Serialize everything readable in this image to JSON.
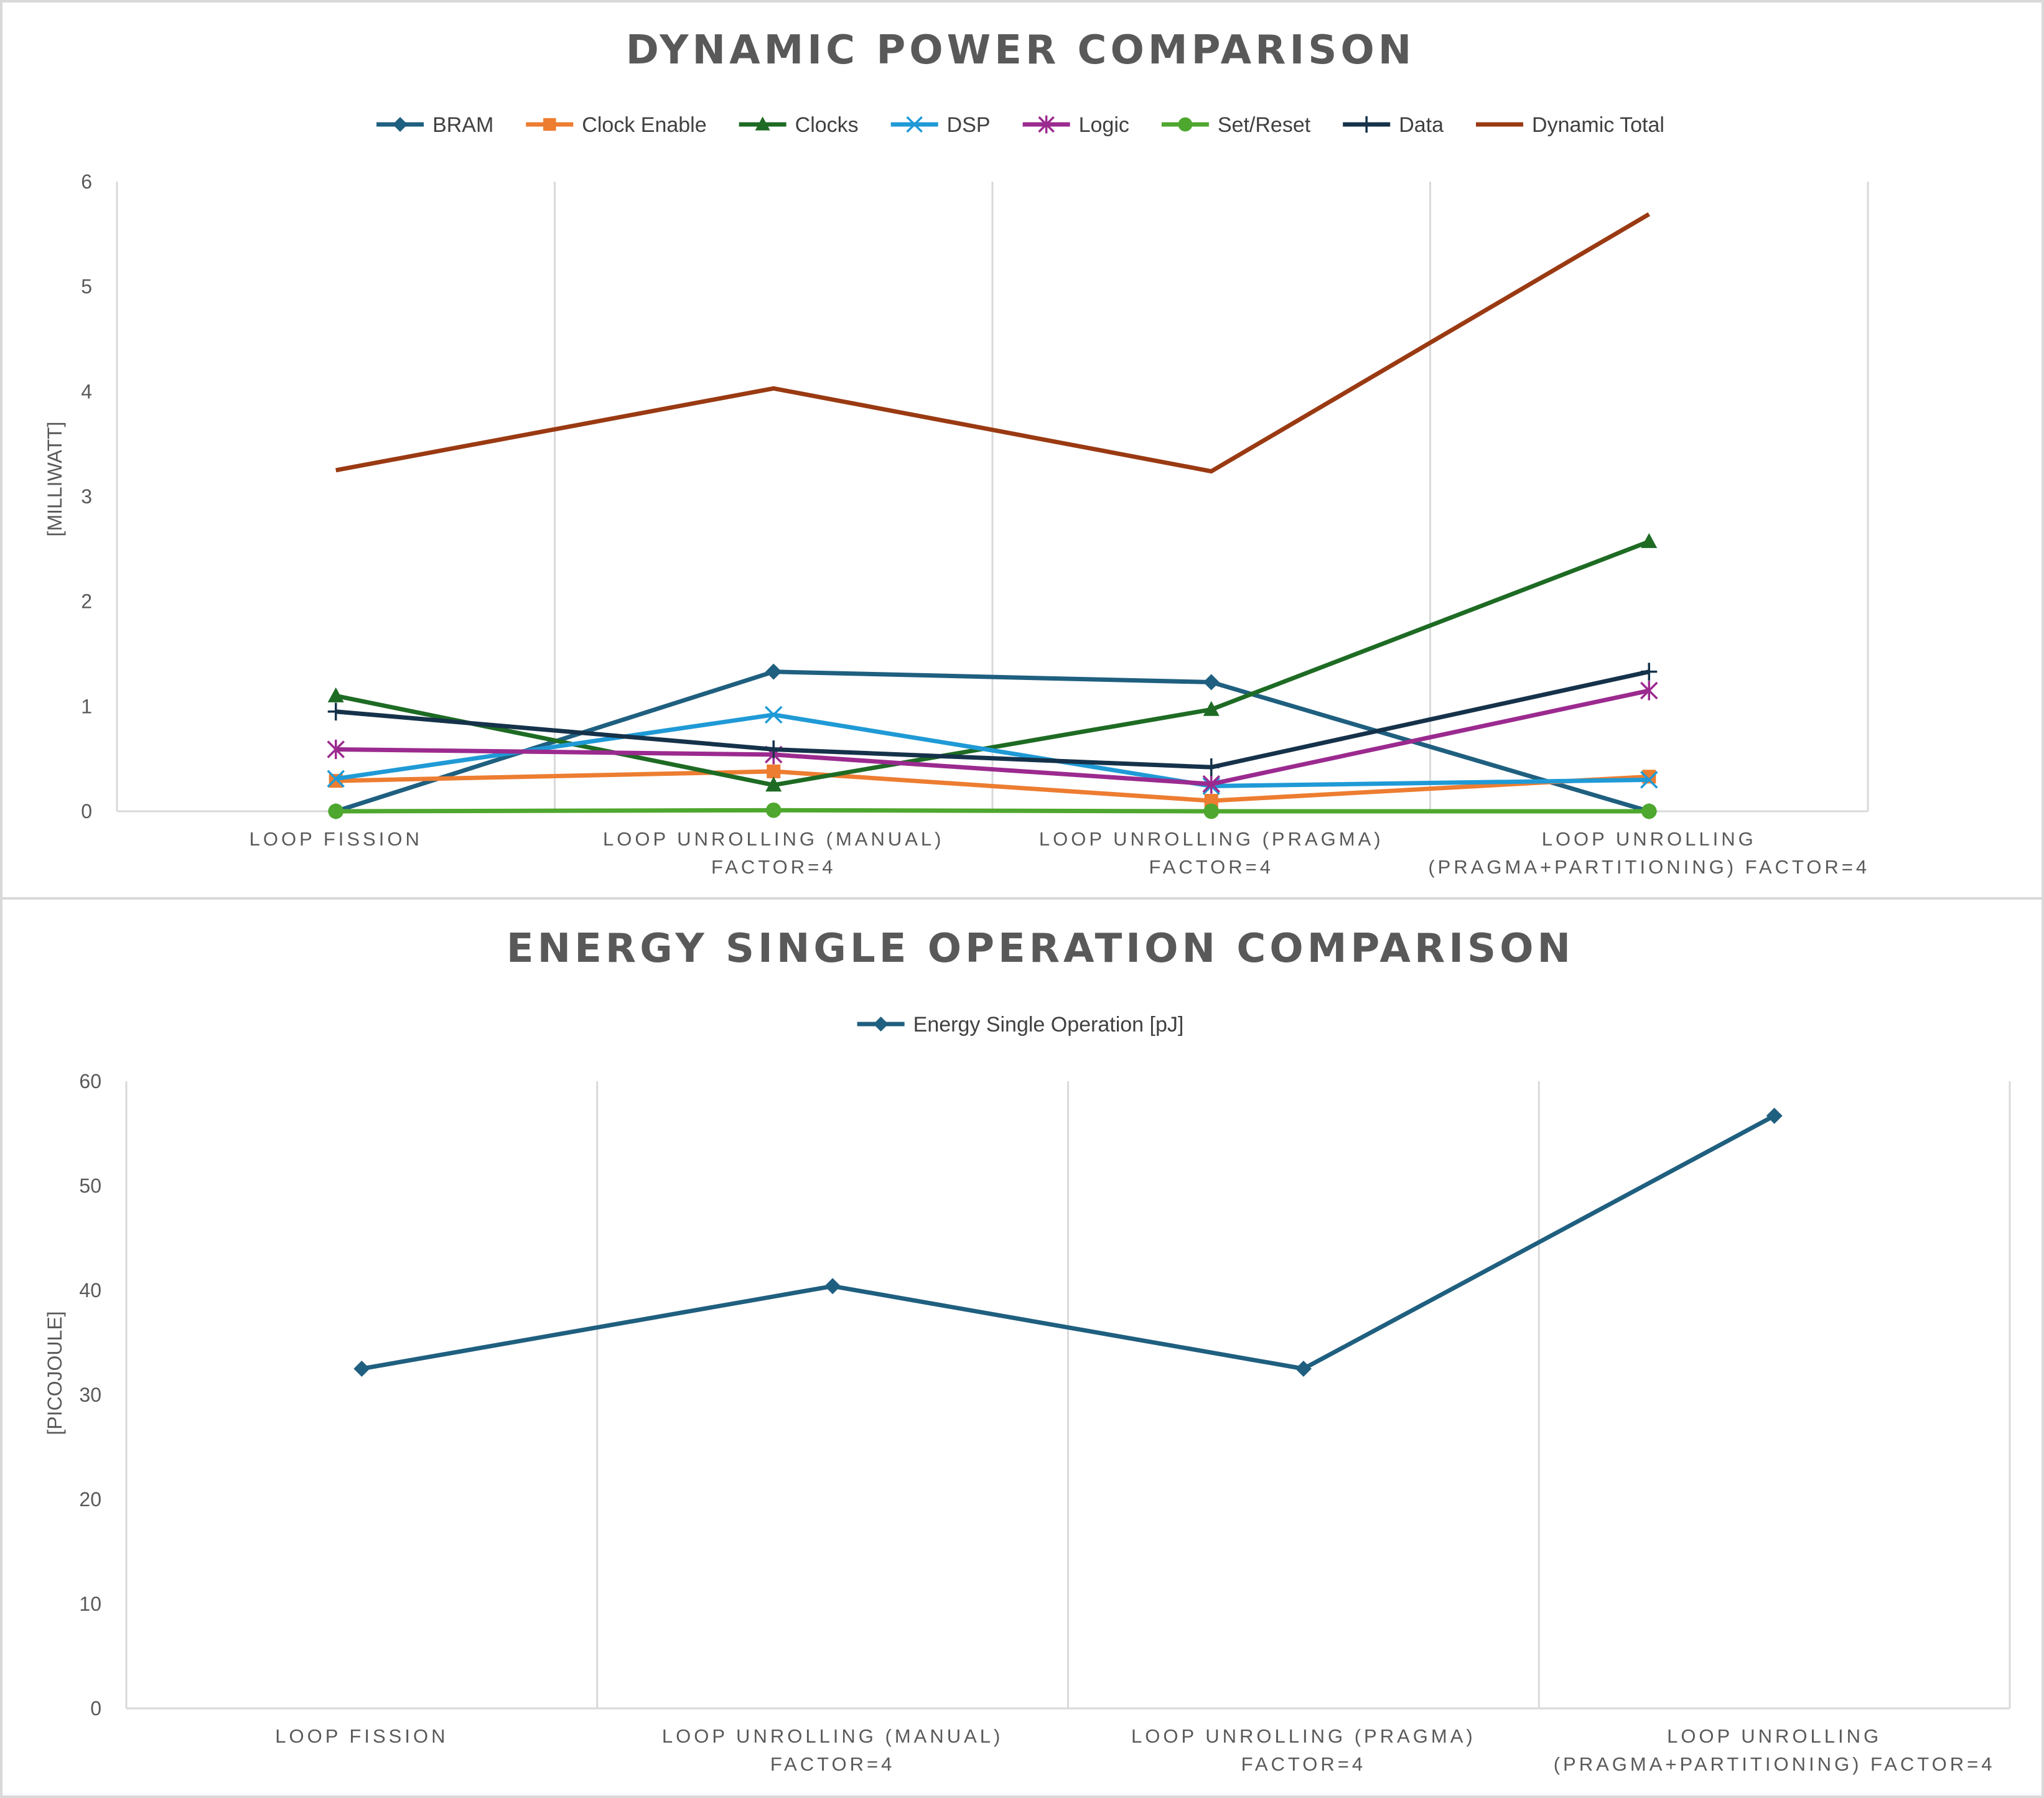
{
  "chart_data": [
    {
      "type": "line",
      "title": "DYNAMIC POWER COMPARISON",
      "xlabel": "",
      "ylabel": "[MILLIWATT]",
      "ylim": [
        0,
        6
      ],
      "yticks": [
        "0",
        "1",
        "2",
        "3",
        "4",
        "5",
        "6"
      ],
      "grid": "vertical",
      "legend": "top",
      "categories": [
        [
          "LOOP FISSION"
        ],
        [
          "LOOP UNROLLING (MANUAL)",
          "FACTOR=4"
        ],
        [
          "LOOP UNROLLING (PRAGMA)",
          "FACTOR=4"
        ],
        [
          "LOOP UNROLLING",
          "(PRAGMA+PARTITIONING) FACTOR=4"
        ]
      ],
      "series": [
        {
          "name": "BRAM",
          "color": "#1f5f7f",
          "marker": "diamond",
          "values": [
            0.0,
            1.33,
            1.23,
            0.0
          ]
        },
        {
          "name": "Clock Enable",
          "color": "#ed7d31",
          "marker": "square",
          "values": [
            0.29,
            0.38,
            0.1,
            0.33
          ]
        },
        {
          "name": "Clocks",
          "color": "#1e6b24",
          "marker": "triangle",
          "values": [
            1.1,
            0.25,
            0.97,
            2.57
          ]
        },
        {
          "name": "DSP",
          "color": "#1f9ad6",
          "marker": "x",
          "values": [
            0.31,
            0.92,
            0.24,
            0.3
          ]
        },
        {
          "name": "Logic",
          "color": "#9b2a8f",
          "marker": "star",
          "values": [
            0.59,
            0.54,
            0.26,
            1.15
          ]
        },
        {
          "name": "Set/Reset",
          "color": "#4ea72e",
          "marker": "circle",
          "values": [
            0.0,
            0.01,
            0.0,
            0.0
          ]
        },
        {
          "name": "Data",
          "color": "#15324a",
          "marker": "plus",
          "values": [
            0.95,
            0.59,
            0.42,
            1.33
          ]
        },
        {
          "name": "Dynamic Total",
          "color": "#9a3a12",
          "marker": "none",
          "values": [
            3.25,
            4.03,
            3.24,
            5.69
          ]
        }
      ]
    },
    {
      "type": "line",
      "title": "ENERGY SINGLE OPERATION COMPARISON",
      "xlabel": "",
      "ylabel": "[PICOJOULE]",
      "ylim": [
        0,
        60
      ],
      "yticks": [
        "0",
        "10",
        "20",
        "30",
        "40",
        "50",
        "60"
      ],
      "grid": "vertical",
      "legend": "top",
      "categories": [
        [
          "LOOP FISSION"
        ],
        [
          "LOOP UNROLLING (MANUAL)",
          "FACTOR=4"
        ],
        [
          "LOOP UNROLLING (PRAGMA)",
          "FACTOR=4"
        ],
        [
          "LOOP UNROLLING",
          "(PRAGMA+PARTITIONING) FACTOR=4"
        ]
      ],
      "series": [
        {
          "name": "Energy Single Operation [pJ]",
          "color": "#1f5f7f",
          "marker": "diamond",
          "values": [
            32.5,
            40.4,
            32.5,
            56.7
          ]
        }
      ]
    }
  ]
}
